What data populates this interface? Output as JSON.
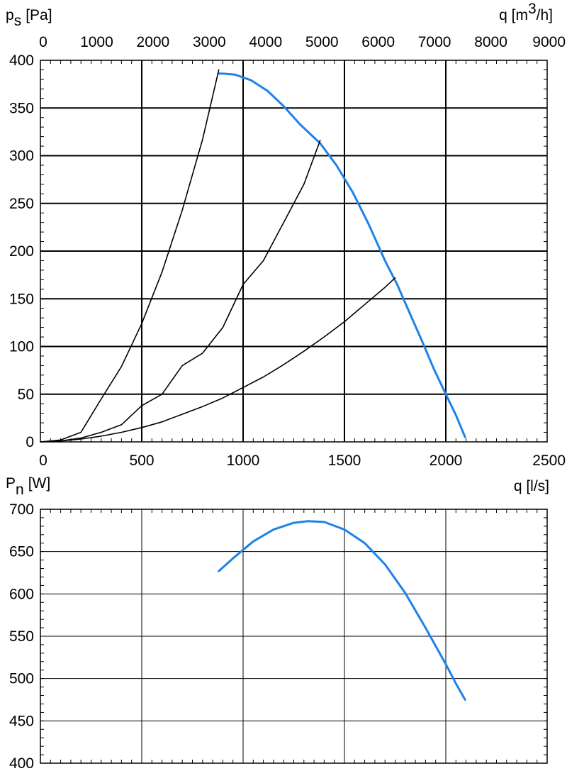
{
  "chart_data": [
    {
      "type": "line",
      "ylabel": {
        "symbol": "p",
        "subscript": "s",
        "unit": "[Pa]"
      },
      "ylim": [
        0,
        400
      ],
      "yticks": [
        0,
        50,
        100,
        150,
        200,
        250,
        300,
        350,
        400
      ],
      "xlim": [
        0,
        2500
      ],
      "xticks": [
        0,
        500,
        1000,
        1500,
        2000,
        2500
      ],
      "xlabel": "q [l/s]",
      "x2label": {
        "base": "q [m",
        "superscript": "3",
        "rest": "/h]"
      },
      "x2lim": [
        0,
        9000
      ],
      "x2ticks": [
        0,
        1000,
        2000,
        3000,
        4000,
        5000,
        6000,
        7000,
        8000,
        9000
      ],
      "grid": true,
      "colors": {
        "fan_curve": "#1e82e6",
        "system_curve": "#000000"
      },
      "series": [
        {
          "role": "fan_curve",
          "x": [
            880,
            900,
            960,
            1040,
            1120,
            1200,
            1280,
            1380,
            1460,
            1540,
            1620,
            1700,
            1760,
            1820,
            1880,
            1940,
            2000,
            2050,
            2095
          ],
          "y": [
            386,
            386,
            385,
            379,
            368,
            352,
            333,
            313,
            290,
            262,
            228,
            190,
            165,
            136,
            107,
            77,
            50,
            28,
            5
          ]
        },
        {
          "role": "system_curve",
          "x": [
            0,
            100,
            200,
            300,
            400,
            500,
            600,
            700,
            800,
            880
          ],
          "y": [
            0,
            2,
            10,
            45,
            79,
            124,
            178,
            243,
            317,
            390
          ]
        },
        {
          "role": "system_curve",
          "x": [
            0,
            100,
            200,
            300,
            400,
            500,
            600,
            700,
            800,
            900,
            1000,
            1100,
            1200,
            1300,
            1380
          ],
          "y": [
            0,
            1,
            4,
            10,
            18,
            38,
            50,
            80,
            93,
            120,
            165,
            190,
            230,
            270,
            316
          ]
        },
        {
          "role": "system_curve",
          "x": [
            0,
            100,
            200,
            300,
            400,
            500,
            600,
            700,
            800,
            900,
            1000,
            1100,
            1200,
            1300,
            1400,
            1500,
            1600,
            1700,
            1750
          ],
          "y": [
            0,
            1,
            3,
            6,
            10,
            15,
            21,
            29,
            37,
            46,
            57,
            68,
            81,
            95,
            110,
            126,
            144,
            162,
            172
          ]
        }
      ]
    },
    {
      "type": "line",
      "ylabel": {
        "symbol": "P",
        "subscript": "n",
        "unit": "[W]"
      },
      "ylim": [
        400,
        700
      ],
      "yticks": [
        400,
        450,
        500,
        550,
        600,
        650,
        700
      ],
      "xlim": [
        0,
        2500
      ],
      "xticks": [
        0,
        500,
        1000,
        1500,
        2000,
        2500
      ],
      "grid": true,
      "colors": {
        "power_curve": "#1e82e6"
      },
      "series": [
        {
          "role": "power_curve",
          "x": [
            880,
            950,
            1050,
            1150,
            1250,
            1320,
            1400,
            1500,
            1600,
            1700,
            1800,
            1900,
            2000,
            2050,
            2095
          ],
          "y": [
            627,
            642,
            662,
            676,
            684,
            686,
            685,
            676,
            660,
            635,
            601,
            560,
            517,
            494,
            475
          ]
        }
      ]
    }
  ]
}
